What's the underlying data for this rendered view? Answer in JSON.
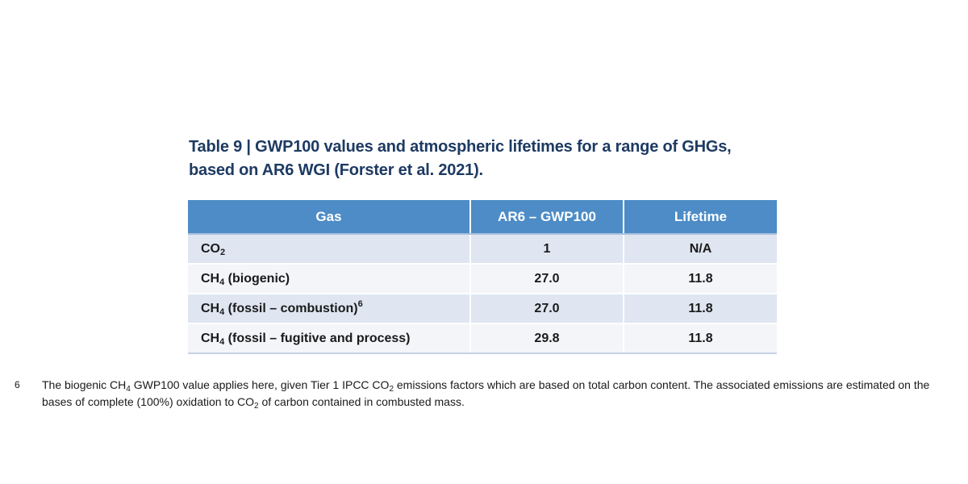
{
  "caption": {
    "line1": "Table 9 | GWP100 values and atmospheric lifetimes for a range of GHGs,",
    "line2": "based on AR6 WGI (Forster et al. 2021)."
  },
  "table": {
    "headers": [
      "Gas",
      "AR6 – GWP100",
      "Lifetime"
    ],
    "rows": [
      {
        "gas_base": "CO",
        "gas_sub": "2",
        "gas_rest": "",
        "gas_sup": "",
        "gwp": "1",
        "lifetime": "N/A"
      },
      {
        "gas_base": "CH",
        "gas_sub": "4",
        "gas_rest": " (biogenic)",
        "gas_sup": "",
        "gwp": "27.0",
        "lifetime": "11.8"
      },
      {
        "gas_base": "CH",
        "gas_sub": "4",
        "gas_rest": " (fossil – combustion)",
        "gas_sup": "6",
        "gwp": "27.0",
        "lifetime": "11.8"
      },
      {
        "gas_base": "CH",
        "gas_sub": "4",
        "gas_rest": " (fossil – fugitive and process)",
        "gas_sup": "",
        "gwp": "29.8",
        "lifetime": "11.8"
      }
    ]
  },
  "footnote": {
    "marker": "6",
    "part1": "The biogenic CH",
    "sub1": "4",
    "part2": " GWP100 value applies here, given Tier 1 IPCC CO",
    "sub2": "2",
    "part3": " emissions factors which are based on total carbon content. The associated emissions are estimated on the bases of complete (100%) oxidation to CO",
    "sub3": "2",
    "part4": " of carbon contained in combusted mass."
  },
  "colors": {
    "caption": "#1d3a63",
    "header_bg": "#4d8cc6",
    "row_shade": "#dfe6f2",
    "row_plain": "#f3f5f9"
  }
}
